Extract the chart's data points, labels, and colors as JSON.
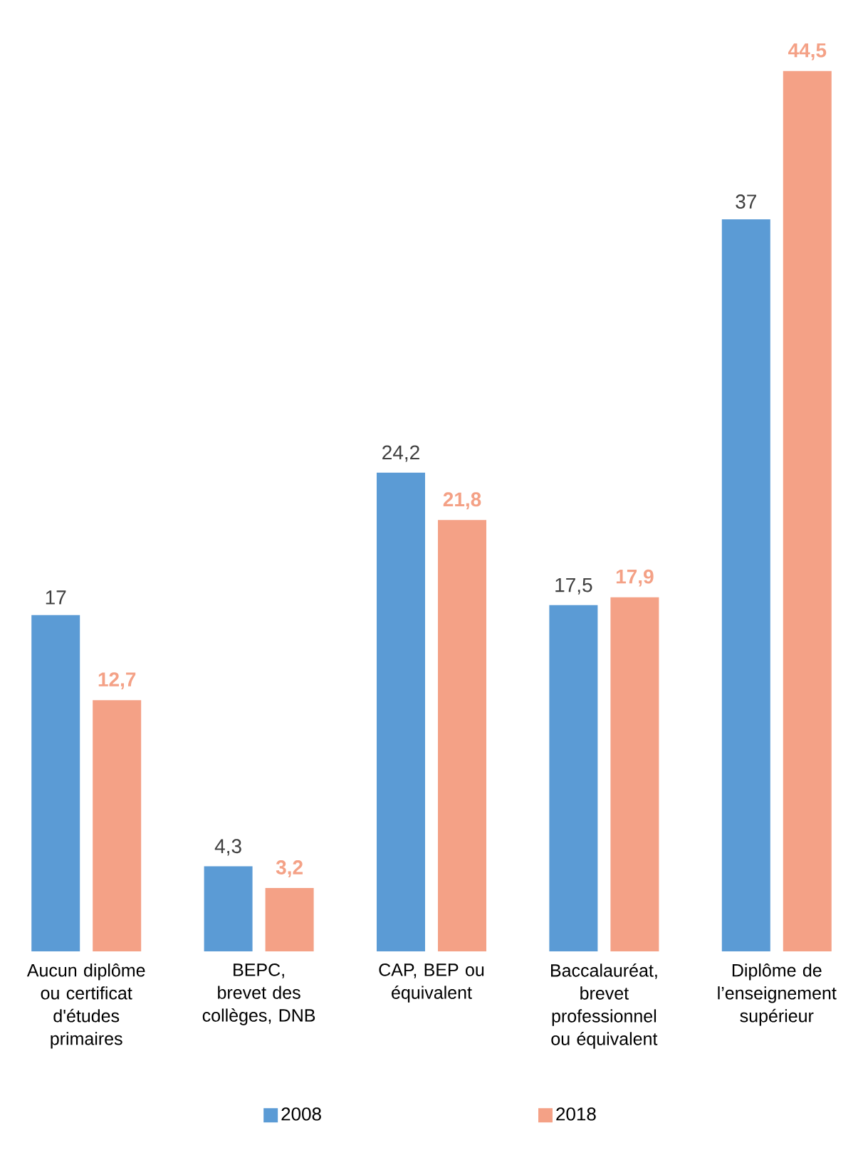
{
  "chart_data": {
    "type": "bar",
    "categories": [
      "Aucun diplôme ou certificat d'études primaires",
      "BEPC, brevet des collèges, DNB",
      "CAP, BEP ou équivalent",
      "Baccalauréat, brevet professionnel ou équivalent",
      "Diplôme de l’enseignement supérieur"
    ],
    "series": [
      {
        "name": "2008",
        "color": "#5b9bd5",
        "values": [
          17,
          4.3,
          24.2,
          17.5,
          37
        ],
        "value_labels": [
          "17",
          "4,3",
          "24,2",
          "17,5",
          "37"
        ]
      },
      {
        "name": "2018",
        "color": "#f4a186",
        "values": [
          12.7,
          3.2,
          21.8,
          17.9,
          44.5
        ],
        "value_labels": [
          "12,7",
          "3,2",
          "21,8",
          "17,9",
          "44,5"
        ]
      }
    ],
    "legend": "bottom"
  }
}
